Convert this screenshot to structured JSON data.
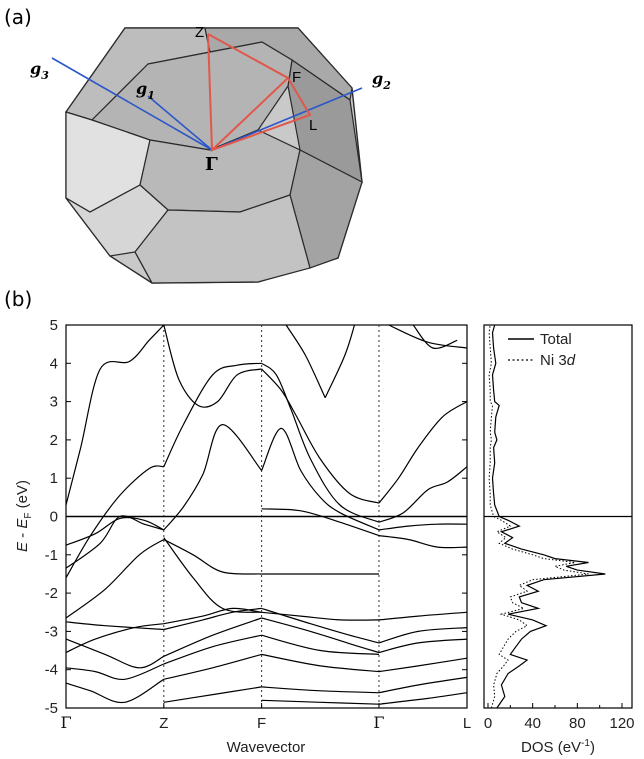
{
  "panel_a": {
    "label": "(a)",
    "vectors": [
      {
        "sym": "g",
        "sub": "3"
      },
      {
        "sym": "g",
        "sub": "1"
      },
      {
        "sym": "g",
        "sub": "2"
      }
    ],
    "points": {
      "Z": "Z",
      "F": "F",
      "L": "L",
      "Gamma": "Γ"
    },
    "colors": {
      "face_light": "#d4d4d4",
      "face_dark": "#a6a6a6",
      "edge": "#2a2a2a",
      "path": "#e0584a",
      "vector": "#2c56c9"
    }
  },
  "panel_b": {
    "label": "(b)",
    "colors": {
      "band": "#000000",
      "dos_total": "#000000",
      "dos_ni3d": "#000000"
    }
  },
  "chart_data": [
    {
      "type": "line",
      "name": "band-structure",
      "xlabel": "Wavevector",
      "ylabel_parts": {
        "E": "E",
        "minus": " - ",
        "EF": "E",
        "EF_sub": "F",
        "unit": " (eV)"
      },
      "ylim": [
        -5,
        5
      ],
      "yticks": [
        "5",
        "4",
        "3",
        "2",
        "1",
        "0",
        "-1",
        "-2",
        "-3",
        "-4",
        "-5"
      ],
      "kpoints": [
        {
          "label": "Γ",
          "x": 0.0
        },
        {
          "label": "Z",
          "x": 1.0
        },
        {
          "label": "F",
          "x": 2.0
        },
        {
          "label": "Γ",
          "x": 3.2
        },
        {
          "label": "L",
          "x": 4.1
        }
      ],
      "fermi_level": 0,
      "bands": [
        {
          "x": [
            0.0,
            0.25,
            0.6,
            1.0
          ],
          "y": [
            -4.35,
            -4.55,
            -4.85,
            -4.25
          ]
        },
        {
          "x": [
            0.0,
            0.3,
            0.6,
            1.0
          ],
          "y": [
            -3.95,
            -4.05,
            -4.25,
            -3.85
          ]
        },
        {
          "x": [
            0.0,
            0.4,
            0.75,
            1.0
          ],
          "y": [
            -3.2,
            -3.6,
            -3.95,
            -3.65
          ]
        },
        {
          "x": [
            0.0,
            0.4,
            1.0
          ],
          "y": [
            -2.75,
            -2.85,
            -2.95
          ]
        },
        {
          "x": [
            0.0,
            0.3,
            0.7,
            1.0
          ],
          "y": [
            -3.55,
            -3.2,
            -2.9,
            -2.8
          ]
        },
        {
          "x": [
            0.0,
            0.4,
            0.75,
            1.0
          ],
          "y": [
            -2.65,
            -1.9,
            -1.0,
            -0.6
          ]
        },
        {
          "x": [
            0.0,
            0.3,
            0.55,
            0.8,
            1.0
          ],
          "y": [
            -0.75,
            -0.45,
            -0.05,
            -0.1,
            -0.35
          ]
        },
        {
          "x": [
            0.0,
            0.35,
            0.55,
            0.8,
            1.0
          ],
          "y": [
            -1.35,
            -0.7,
            0.0,
            -0.2,
            -0.35
          ]
        },
        {
          "x": [
            0.0,
            0.15,
            0.35,
            0.65,
            0.85,
            1.0
          ],
          "y": [
            0.3,
            1.8,
            3.85,
            4.05,
            4.6,
            5.0
          ]
        },
        {
          "x": [
            0.0,
            0.25,
            0.55,
            0.85,
            1.0
          ],
          "y": [
            -1.6,
            -0.5,
            0.55,
            1.25,
            1.3
          ]
        },
        {
          "x": [
            1.0,
            1.15,
            1.35,
            1.55,
            1.75,
            2.0
          ],
          "y": [
            5.0,
            3.6,
            2.9,
            3.0,
            3.7,
            3.85
          ]
        },
        {
          "x": [
            1.0,
            1.2,
            1.5,
            1.75,
            2.0
          ],
          "y": [
            1.3,
            2.4,
            3.7,
            3.95,
            4.0
          ]
        },
        {
          "x": [
            1.0,
            1.2,
            1.4,
            1.6,
            2.0
          ],
          "y": [
            -0.35,
            0.25,
            1.1,
            2.4,
            1.2
          ]
        },
        {
          "x": [
            1.0,
            1.3,
            1.6,
            2.0
          ],
          "y": [
            -0.6,
            -1.0,
            -1.45,
            -1.5
          ]
        },
        {
          "x": [
            1.0,
            1.3,
            1.6,
            2.0
          ],
          "y": [
            -0.55,
            -1.6,
            -2.4,
            -2.5
          ]
        },
        {
          "x": [
            1.0,
            1.4,
            1.7,
            2.0
          ],
          "y": [
            -2.8,
            -2.6,
            -2.4,
            -2.5
          ]
        },
        {
          "x": [
            1.0,
            1.4,
            1.7,
            2.0
          ],
          "y": [
            -2.95,
            -2.7,
            -2.5,
            -2.4
          ]
        },
        {
          "x": [
            1.0,
            1.5,
            2.0
          ],
          "y": [
            -3.65,
            -3.1,
            -2.65
          ]
        },
        {
          "x": [
            1.0,
            1.5,
            2.0
          ],
          "y": [
            -3.85,
            -3.4,
            -3.1
          ]
        },
        {
          "x": [
            1.0,
            1.5,
            2.0
          ],
          "y": [
            -4.25,
            -3.95,
            -3.6
          ]
        },
        {
          "x": [
            1.0,
            1.5,
            2.0
          ],
          "y": [
            -4.85,
            -4.65,
            -4.45
          ]
        },
        {
          "x": [
            2.0,
            2.2,
            2.35,
            2.6,
            2.9,
            3.2
          ],
          "y": [
            3.85,
            3.3,
            2.65,
            1.5,
            0.6,
            0.35
          ]
        },
        {
          "x": [
            2.0,
            2.15,
            2.3,
            2.5,
            2.8,
            3.2
          ],
          "y": [
            4.0,
            3.7,
            2.8,
            1.5,
            0.3,
            -0.15
          ]
        },
        {
          "x": [
            2.0,
            2.2,
            2.4,
            2.6,
            2.8,
            3.2
          ],
          "y": [
            1.2,
            2.3,
            1.2,
            0.5,
            0.1,
            -0.35
          ]
        },
        {
          "x": [
            2.0,
            2.4,
            2.8,
            3.2
          ],
          "y": [
            0.2,
            0.15,
            -0.15,
            -0.5
          ]
        },
        {
          "x": [
            2.0,
            2.5,
            3.2
          ],
          "y": [
            -1.5,
            -1.5,
            -1.5
          ]
        },
        {
          "x": [
            2.0,
            2.4,
            2.8,
            3.2
          ],
          "y": [
            -2.5,
            -2.6,
            -2.7,
            -2.7
          ]
        },
        {
          "x": [
            2.0,
            2.5,
            2.9,
            3.2
          ],
          "y": [
            -2.4,
            -2.8,
            -3.1,
            -3.3
          ]
        },
        {
          "x": [
            2.0,
            2.5,
            3.0,
            3.2
          ],
          "y": [
            -2.65,
            -3.0,
            -3.4,
            -3.55
          ]
        },
        {
          "x": [
            2.0,
            2.6,
            3.2
          ],
          "y": [
            -3.1,
            -3.5,
            -3.6
          ]
        },
        {
          "x": [
            2.0,
            2.6,
            3.2
          ],
          "y": [
            -3.6,
            -3.9,
            -4.05
          ]
        },
        {
          "x": [
            2.0,
            2.6,
            3.2
          ],
          "y": [
            -4.45,
            -4.55,
            -4.6
          ]
        },
        {
          "x": [
            2.0,
            2.6,
            3.2
          ],
          "y": [
            -4.8,
            -4.85,
            -4.9
          ]
        },
        {
          "x": [
            2.25,
            2.45,
            2.65
          ],
          "y": [
            5.0,
            4.2,
            3.1
          ]
        },
        {
          "x": [
            2.65,
            2.85,
            2.95
          ],
          "y": [
            3.1,
            4.2,
            5.0
          ]
        },
        {
          "x": [
            3.2,
            3.4,
            3.6,
            3.85,
            4.1
          ],
          "y": [
            0.35,
            1.0,
            1.8,
            2.6,
            3.0
          ]
        },
        {
          "x": [
            3.2,
            3.45,
            3.7,
            3.9,
            4.1
          ],
          "y": [
            -0.15,
            0.1,
            0.7,
            0.9,
            1.3
          ]
        },
        {
          "x": [
            3.2,
            3.5,
            3.8,
            4.1
          ],
          "y": [
            -0.35,
            -0.25,
            -0.2,
            -0.2
          ]
        },
        {
          "x": [
            3.2,
            3.5,
            3.8,
            4.1
          ],
          "y": [
            -0.5,
            -0.6,
            -0.8,
            -0.8
          ]
        },
        {
          "x": [
            3.2,
            3.6,
            4.1
          ],
          "y": [
            -2.7,
            -2.6,
            -2.5
          ]
        },
        {
          "x": [
            3.2,
            3.6,
            4.1
          ],
          "y": [
            -3.3,
            -3.0,
            -2.9
          ]
        },
        {
          "x": [
            3.2,
            3.6,
            4.1
          ],
          "y": [
            -3.55,
            -3.3,
            -3.2
          ]
        },
        {
          "x": [
            3.2,
            3.6,
            4.1
          ],
          "y": [
            -4.05,
            -3.9,
            -3.7
          ]
        },
        {
          "x": [
            3.2,
            3.6,
            4.1
          ],
          "y": [
            -4.6,
            -4.4,
            -4.2
          ]
        },
        {
          "x": [
            3.2,
            3.7,
            4.1
          ],
          "y": [
            -4.9,
            -4.75,
            -4.6
          ]
        },
        {
          "x": [
            3.3,
            3.7,
            4.1
          ],
          "y": [
            5.0,
            4.55,
            4.4
          ]
        },
        {
          "x": [
            3.55,
            3.75,
            4.0
          ],
          "y": [
            5.0,
            4.4,
            4.6
          ]
        }
      ]
    },
    {
      "type": "line",
      "name": "density-of-states",
      "xlabel": "DOS (eV",
      "xlabel_sup": "-1",
      "xlabel_close": ")",
      "xlim": [
        0,
        120
      ],
      "xticks": [
        "0",
        "40",
        "80",
        "120"
      ],
      "ylim": [
        -5,
        5
      ],
      "legend_position": "top-right",
      "series": [
        {
          "name": "Total",
          "style": "solid",
          "energy": [
            -5.0,
            -4.7,
            -4.4,
            -4.1,
            -3.9,
            -3.75,
            -3.6,
            -3.4,
            -3.2,
            -3.0,
            -2.85,
            -2.7,
            -2.55,
            -2.4,
            -2.25,
            -2.1,
            -1.95,
            -1.8,
            -1.65,
            -1.5,
            -1.4,
            -1.3,
            -1.2,
            -1.1,
            -1.0,
            -0.85,
            -0.7,
            -0.55,
            -0.4,
            -0.25,
            -0.1,
            0.0,
            0.3,
            0.6,
            1.0,
            1.4,
            1.8,
            2.0,
            2.2,
            2.6,
            2.9,
            3.0,
            3.3,
            3.7,
            4.0,
            4.4,
            4.8,
            5.0
          ],
          "dos": [
            8,
            15,
            12,
            18,
            28,
            35,
            20,
            25,
            30,
            38,
            52,
            40,
            18,
            45,
            30,
            28,
            45,
            35,
            50,
            105,
            80,
            70,
            90,
            60,
            50,
            30,
            15,
            22,
            12,
            28,
            18,
            10,
            6,
            5,
            4,
            6,
            5,
            8,
            6,
            7,
            10,
            6,
            5,
            4,
            7,
            5,
            4,
            6
          ]
        },
        {
          "name": "Ni 3d",
          "style": "dotted",
          "energy": [
            -5.0,
            -4.7,
            -4.4,
            -4.1,
            -3.9,
            -3.75,
            -3.6,
            -3.4,
            -3.2,
            -3.0,
            -2.85,
            -2.7,
            -2.55,
            -2.4,
            -2.25,
            -2.1,
            -1.95,
            -1.8,
            -1.65,
            -1.5,
            -1.4,
            -1.3,
            -1.2,
            -1.1,
            -1.0,
            -0.85,
            -0.7,
            -0.55,
            -0.4,
            -0.25,
            -0.1,
            0.0,
            0.3,
            0.6,
            1.0,
            1.4,
            1.8,
            2.0,
            2.2,
            2.6,
            2.9,
            3.0,
            3.3,
            3.7,
            4.0,
            4.4,
            4.8,
            5.0
          ],
          "dos": [
            3,
            6,
            5,
            8,
            14,
            18,
            10,
            14,
            18,
            25,
            35,
            28,
            12,
            32,
            22,
            20,
            35,
            28,
            40,
            90,
            68,
            60,
            78,
            50,
            40,
            22,
            10,
            16,
            8,
            20,
            12,
            5,
            2,
            2,
            1,
            2,
            2,
            3,
            2,
            3,
            4,
            2,
            2,
            1,
            3,
            2,
            1,
            2
          ]
        }
      ]
    }
  ]
}
